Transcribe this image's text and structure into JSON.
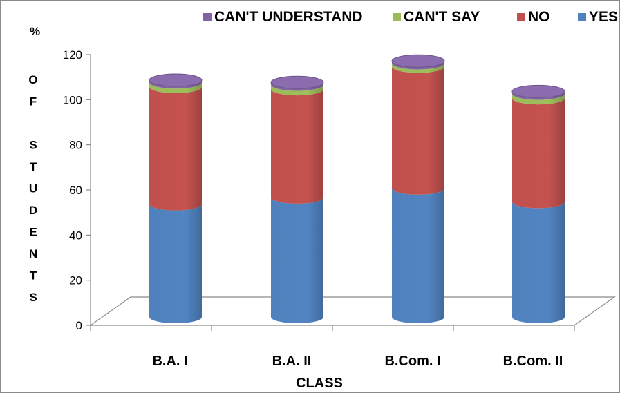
{
  "chart_data": {
    "type": "bar",
    "stacked": true,
    "style": "3d-cylinder",
    "categories": [
      "B.A. I",
      "B.A. II",
      "B.Com. I",
      "B.Com. II"
    ],
    "series": [
      {
        "name": "YES",
        "color": "#4F81BD",
        "values": [
          50,
          53,
          57,
          51
        ]
      },
      {
        "name": "NO",
        "color": "#C0504D",
        "values": [
          52,
          48,
          54,
          46
        ]
      },
      {
        "name": "CAN'T SAY",
        "color": "#9BBB59",
        "values": [
          2,
          2,
          1.5,
          2
        ]
      },
      {
        "name": "CAN'T UNDERSTAND",
        "color": "#8064A2",
        "values": [
          1,
          1,
          1,
          1
        ]
      }
    ],
    "xlabel": "CLASS",
    "ylabel_top": "%",
    "ylabel_letters": [
      "O",
      "F",
      "",
      "S",
      "T",
      "U",
      "D",
      "E",
      "N",
      "T",
      "S"
    ],
    "ylim": [
      0,
      120
    ],
    "yticks": [
      0,
      20,
      40,
      60,
      80,
      100,
      120
    ],
    "legend": {
      "placement": "top",
      "order": [
        "CAN'T UNDERSTAND",
        "CAN'T SAY",
        "NO",
        "YES"
      ]
    },
    "grid": false
  }
}
